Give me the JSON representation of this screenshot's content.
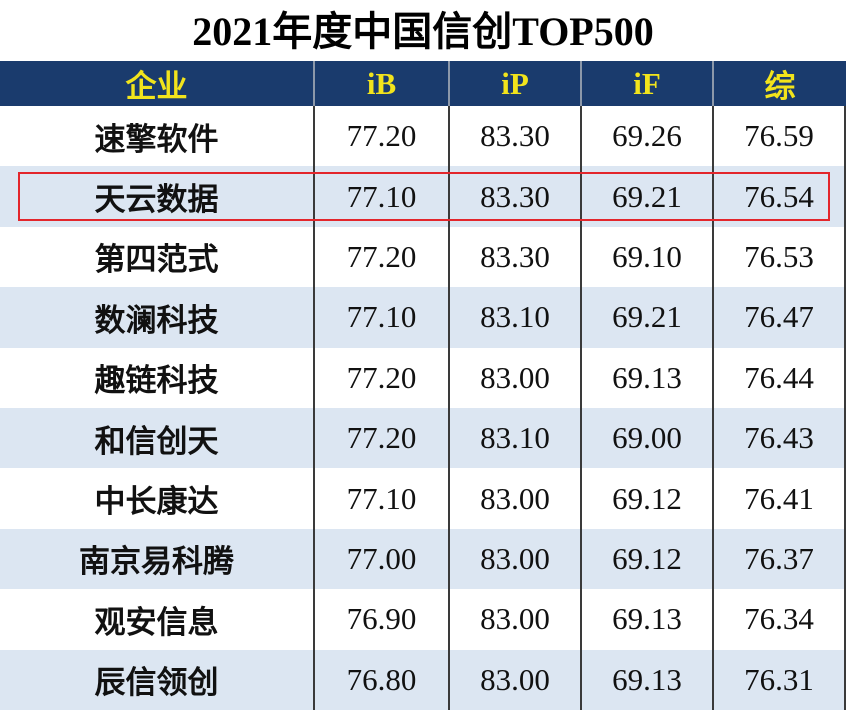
{
  "chart_data": {
    "type": "table",
    "title": "2021年度中国信创TOP500",
    "columns": [
      "企业",
      "iB",
      "iP",
      "iF",
      "综"
    ],
    "rows": [
      {
        "cells": [
          "速擎软件",
          "77.20",
          "83.30",
          "69.26",
          "76.59"
        ]
      },
      {
        "cells": [
          "天云数据",
          "77.10",
          "83.30",
          "69.21",
          "76.54"
        ],
        "highlighted": true
      },
      {
        "cells": [
          "第四范式",
          "77.20",
          "83.30",
          "69.10",
          "76.53"
        ]
      },
      {
        "cells": [
          "数澜科技",
          "77.10",
          "83.10",
          "69.21",
          "76.47"
        ]
      },
      {
        "cells": [
          "趣链科技",
          "77.20",
          "83.00",
          "69.13",
          "76.44"
        ]
      },
      {
        "cells": [
          "和信创天",
          "77.20",
          "83.10",
          "69.00",
          "76.43"
        ]
      },
      {
        "cells": [
          "中长康达",
          "77.10",
          "83.00",
          "69.12",
          "76.41"
        ]
      },
      {
        "cells": [
          "南京易科腾",
          "77.00",
          "83.00",
          "69.12",
          "76.37"
        ]
      },
      {
        "cells": [
          "观安信息",
          "76.90",
          "83.00",
          "69.13",
          "76.34"
        ]
      },
      {
        "cells": [
          "辰信领创",
          "76.80",
          "83.00",
          "69.13",
          "76.31"
        ]
      }
    ]
  },
  "colors": {
    "header_bg": "#1a3b6d",
    "header_text": "#f2e41c",
    "stripe": "#dce6f2",
    "highlight": "#e3262c",
    "grid": "#3a3a3a"
  }
}
